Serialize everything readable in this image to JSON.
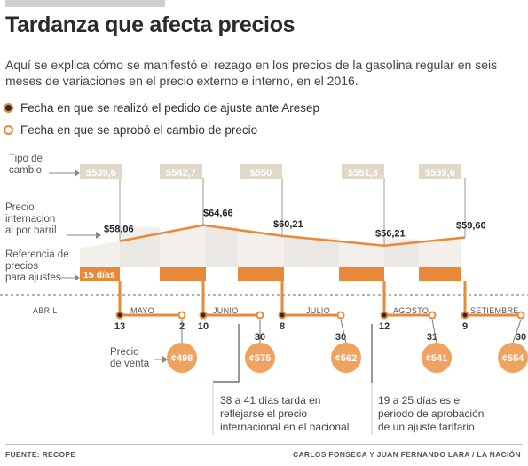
{
  "title": "Tardanza que afecta precios",
  "subtitle": "Aquí se explica cómo se manifestó el rezago en los precios de la gasolina regular en seis meses de variaciones en el precio externo e interno, en el 2016.",
  "legend": {
    "requested": "Fecha en que se realizó el pedido de ajuste ante Aresep",
    "approved": "Fecha en que se aprobó el cambio de precio"
  },
  "labels": {
    "exchange_rate": "Tipo de cambio",
    "intl_price": "Precio internacion al por barril",
    "reference": "Referencia de precios para ajustes",
    "sale_price": "Precio de venta",
    "fifteen_days": "15 días"
  },
  "annotations": {
    "lag": "38 a 41 días tarda en reflejarse el precio internacional en el nacional",
    "approval": "19 a 25 días es el periodo de aprobación de un ajuste tarifario"
  },
  "footer": {
    "source": "FUENTE:  RECOPE",
    "credits": "CARLOS FONSECA Y JUAN FERNANDO LARA / LA NACIÓN"
  },
  "colors": {
    "orange": "#e8893a",
    "circle": "#f0a261",
    "exchange_box": "#e2d8ca",
    "band": "#f3efea",
    "band_dark": "#e6e1dc"
  },
  "chart_data": {
    "type": "line",
    "months": [
      "ABRIL",
      "MAYO",
      "JUNIO",
      "JULIO",
      "AGOSTO",
      "SETIEMBRE"
    ],
    "exchange_rate": [
      "$539,6",
      "$542,7",
      "$550",
      "$551,3",
      "$539,6"
    ],
    "intl_price_per_barrel": [
      58.06,
      64.66,
      60.21,
      56.21,
      59.6
    ],
    "intl_price_labels": [
      "$58,06",
      "$64,66",
      "$60,21",
      "$56,21",
      "$59,60"
    ],
    "request_days": [
      "13",
      "10",
      "8",
      "12",
      "9"
    ],
    "approval_days": [
      "2",
      "30",
      "30",
      "31",
      "30"
    ],
    "sale_price": [
      "¢498",
      "¢575",
      "¢562",
      "¢541",
      "¢554"
    ]
  }
}
